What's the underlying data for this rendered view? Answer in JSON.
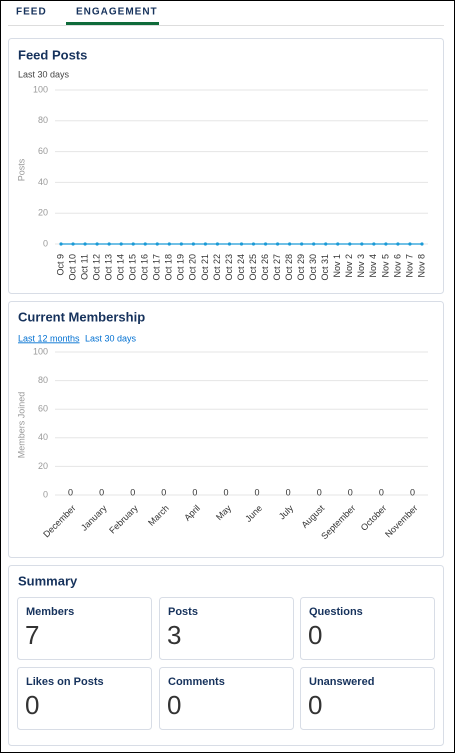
{
  "tabs": [
    "FEED",
    "ENGAGEMENT"
  ],
  "chart_data": [
    {
      "type": "line",
      "title": "Feed Posts",
      "subtitle": "Last 30 days",
      "ylabel": "Posts",
      "color": "#1b9ad6",
      "categories": [
        "Oct 9",
        "Oct 10",
        "Oct 11",
        "Oct 12",
        "Oct 13",
        "Oct 14",
        "Oct 15",
        "Oct 16",
        "Oct 17",
        "Oct 18",
        "Oct 19",
        "Oct 20",
        "Oct 21",
        "Oct 22",
        "Oct 23",
        "Oct 24",
        "Oct 25",
        "Oct 26",
        "Oct 27",
        "Oct 28",
        "Oct 29",
        "Oct 30",
        "Oct 31",
        "Nov 1",
        "Nov 2",
        "Nov 3",
        "Nov 4",
        "Nov 5",
        "Nov 6",
        "Nov 7",
        "Nov 8"
      ],
      "values": [
        0,
        0,
        0,
        0,
        0,
        0,
        0,
        0,
        0,
        0,
        0,
        0,
        0,
        0,
        0,
        0,
        0,
        0,
        0,
        0,
        0,
        0,
        0,
        0,
        0,
        0,
        0,
        0,
        0,
        0,
        0
      ],
      "ylim": [
        0,
        100
      ],
      "yticks": [
        0,
        20,
        40,
        60,
        80,
        100
      ],
      "grid": true
    },
    {
      "type": "bar",
      "title": "Current Membership",
      "range_options": [
        "Last 12 months",
        "Last 30 days"
      ],
      "ylabel": "Members Joined",
      "color": "#1b9ad6",
      "categories": [
        "December",
        "January",
        "February",
        "March",
        "April",
        "May",
        "June",
        "July",
        "August",
        "September",
        "October",
        "November"
      ],
      "values": [
        0,
        0,
        0,
        0,
        0,
        0,
        0,
        0,
        0,
        0,
        0,
        0
      ],
      "ylim": [
        0,
        100
      ],
      "yticks": [
        0,
        20,
        40,
        60,
        80,
        100
      ],
      "grid": true
    }
  ],
  "summary": {
    "title": "Summary",
    "cards": [
      {
        "label": "Members",
        "value": 7
      },
      {
        "label": "Posts",
        "value": 3
      },
      {
        "label": "Questions",
        "value": 0
      },
      {
        "label": "Likes on Posts",
        "value": 0
      },
      {
        "label": "Comments",
        "value": 0
      },
      {
        "label": "Unanswered",
        "value": 0
      }
    ]
  }
}
